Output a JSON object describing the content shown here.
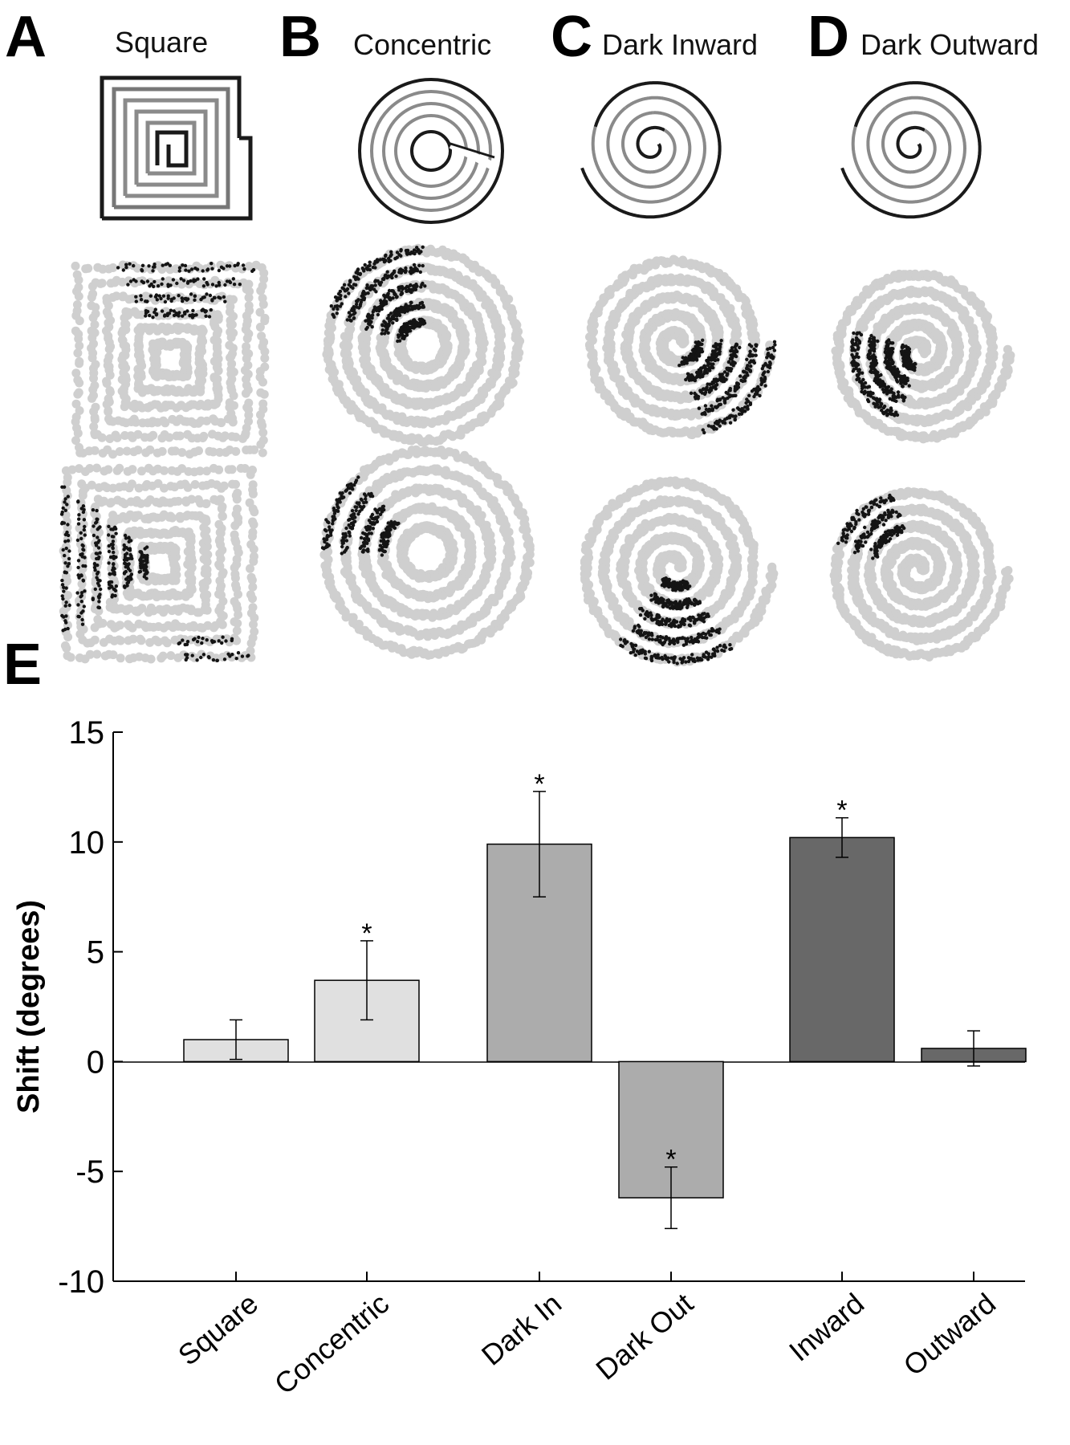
{
  "panels": [
    {
      "letter": "A",
      "title": "Square"
    },
    {
      "letter": "B",
      "title": "Concentric"
    },
    {
      "letter": "C",
      "title": "Dark Inward"
    },
    {
      "letter": "D",
      "title": "Dark Outward"
    }
  ],
  "chart_panel_letter": "E",
  "colors": {
    "light_bar": "#e0e0e0",
    "mid_bar": "#acacac",
    "dark_bar": "#686868",
    "trace_gray": "#cfcfcf",
    "trace_dark": "#141414"
  },
  "chart_data": {
    "type": "bar",
    "categories": [
      "Square",
      "Concentric",
      "Dark In",
      "Dark Out",
      "Inward",
      "Outward"
    ],
    "values": [
      1.0,
      3.7,
      9.9,
      -6.2,
      10.2,
      0.6
    ],
    "error": [
      0.9,
      1.8,
      2.4,
      1.4,
      0.9,
      0.8
    ],
    "significant": [
      false,
      true,
      true,
      true,
      true,
      false
    ],
    "significance_marker": "*",
    "bar_colors": [
      "#e0e0e0",
      "#e0e0e0",
      "#acacac",
      "#acacac",
      "#686868",
      "#686868"
    ],
    "xlabel": "",
    "ylabel": "Shift (degrees)",
    "ylim": [
      -10,
      15
    ],
    "yticks": [
      "15",
      "10",
      "5",
      "0",
      "-5",
      "-10"
    ],
    "grid": false
  }
}
